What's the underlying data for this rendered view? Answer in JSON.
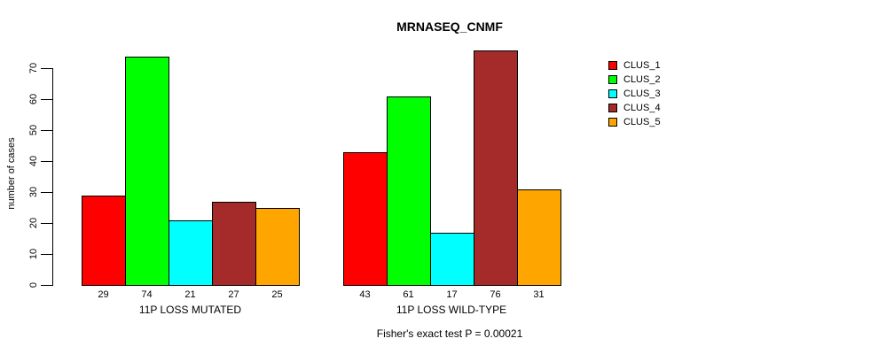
{
  "footnote": "Fisher's exact test P = 0.00021",
  "chart_data": {
    "type": "bar",
    "title": "MRNASEQ_CNMF",
    "xlabel": "",
    "ylabel": "number of cases",
    "ylim": [
      0,
      76
    ],
    "yticks": [
      0,
      10,
      20,
      30,
      40,
      50,
      60,
      70
    ],
    "grid": false,
    "legend_position": "right",
    "bar_value_labels_shown": true,
    "categories": [
      "11P LOSS MUTATED",
      "11P LOSS WILD-TYPE"
    ],
    "groups": [
      {
        "label": "11P LOSS MUTATED",
        "values": [
          29,
          74,
          21,
          27,
          25
        ]
      },
      {
        "label": "11P LOSS WILD-TYPE",
        "values": [
          43,
          61,
          17,
          76,
          31
        ]
      }
    ],
    "series": [
      {
        "name": "CLUS_1",
        "color": "#FF0000"
      },
      {
        "name": "CLUS_2",
        "color": "#00FF00"
      },
      {
        "name": "CLUS_3",
        "color": "#00FFFF"
      },
      {
        "name": "CLUS_4",
        "color": "#A52A2A"
      },
      {
        "name": "CLUS_5",
        "color": "#FFA500"
      }
    ],
    "annotation": "Fisher's exact test P = 0.00021"
  }
}
